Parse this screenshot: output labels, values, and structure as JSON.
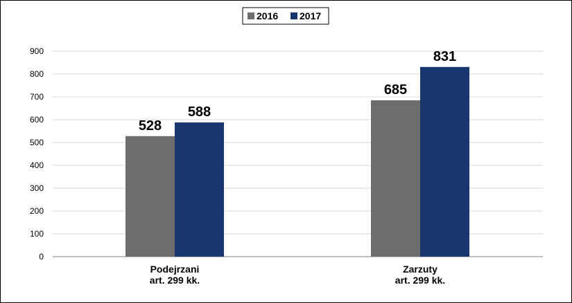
{
  "chart_data": {
    "type": "bar",
    "title": "",
    "xlabel": "",
    "ylabel": "",
    "categories": [
      [
        "Podejrzani",
        "art. 299 kk."
      ],
      [
        "Zarzuty",
        "art. 299 kk."
      ]
    ],
    "series": [
      {
        "name": "2016",
        "values": [
          528,
          685
        ],
        "color": "#6d6d6d"
      },
      {
        "name": "2017",
        "values": [
          588,
          831
        ],
        "color": "#17376e"
      }
    ],
    "ylim": [
      0,
      900
    ],
    "yticks": [
      "0",
      "100",
      "200",
      "300",
      "400",
      "500",
      "600",
      "700",
      "800",
      "900"
    ],
    "grid": true,
    "legend": "top-center",
    "data_labels": true
  }
}
